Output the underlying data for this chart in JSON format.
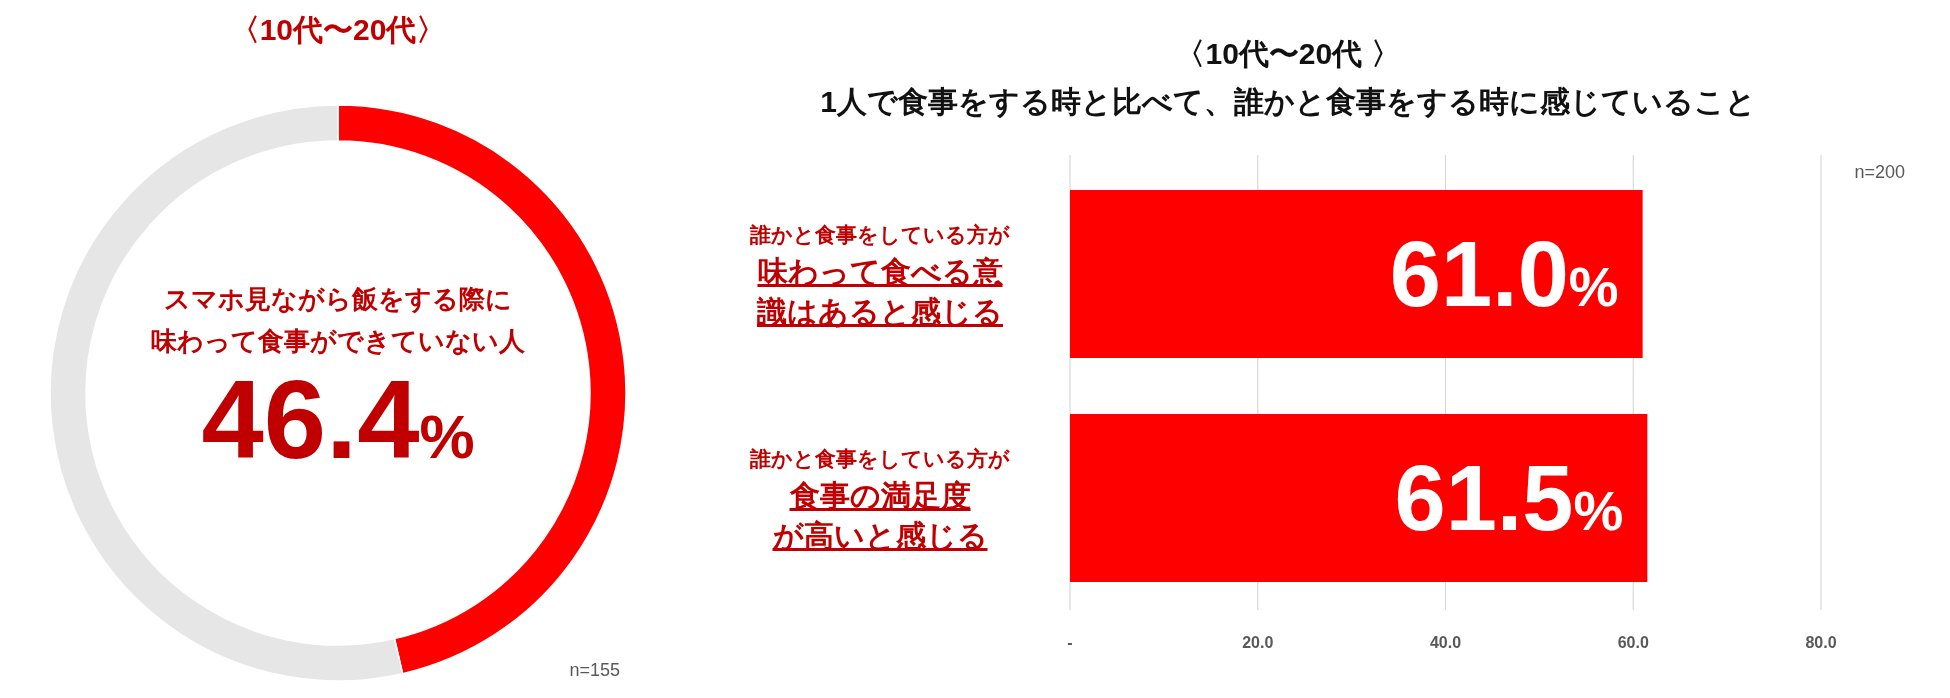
{
  "chart_data": [
    {
      "type": "donut",
      "title": "〈10代〜20代〉",
      "categories": [
        "スマホ見ながら飯をする際に味わって食事ができていない人",
        null
      ],
      "values": [
        46.4,
        53.6
      ],
      "colors": [
        "#ff0000",
        "#e6e6e6"
      ],
      "value_labels": [
        "46.4%",
        null
      ],
      "annotations": [
        "n=155"
      ]
    },
    {
      "type": "bar",
      "orientation": "horizontal",
      "title": "〈10代〜20代 〉",
      "subtitle": "1人で食事をする時と比べて、誰かと食事をする時に感じていること",
      "categories": [
        "誰かと食事をしている方が**味わって食べる意識はあると感じる**",
        "誰かと食事をしている方が**食事の満足度が高いと感じる**"
      ],
      "values": [
        61.0,
        61.5
      ],
      "color": "#ff0000",
      "value_labels": [
        "61.0%",
        "61.5%"
      ],
      "xlim": [
        0,
        80
      ],
      "xticks": [
        {
          "value": 0,
          "label": "-"
        },
        {
          "value": 20,
          "label": "20.0"
        },
        {
          "value": 40,
          "label": "40.0"
        },
        {
          "value": 60,
          "label": "60.0"
        },
        {
          "value": 80,
          "label": "80.0"
        }
      ],
      "grid": "x",
      "annotations": [
        "n=200"
      ]
    }
  ]
}
